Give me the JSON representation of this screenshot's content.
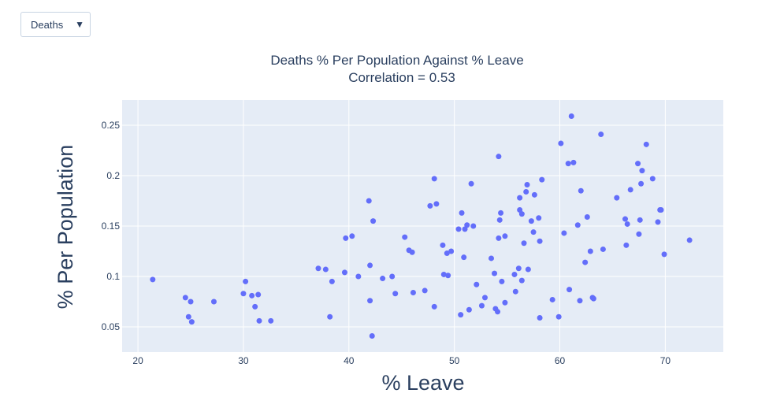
{
  "dropdown": {
    "selected": "Deaths"
  },
  "chart_data": {
    "type": "scatter",
    "title": "Deaths % Per Population Against % Leave",
    "subtitle": "Correlation = 0.53",
    "xlabel": "% Leave",
    "ylabel": "% Per Population",
    "xlim": [
      18.5,
      75.5
    ],
    "ylim": [
      0.025,
      0.275
    ],
    "xticks": [
      20,
      30,
      40,
      50,
      60,
      70
    ],
    "yticks": [
      0.05,
      0.1,
      0.15,
      0.2,
      0.25
    ],
    "ytick_labels": [
      "0.05",
      "0.1",
      "0.15",
      "0.2",
      "0.25"
    ],
    "grid": true,
    "marker_color": "#636efa",
    "plot_bg": "#e5ecf6",
    "points": [
      [
        21.4,
        0.097
      ],
      [
        24.5,
        0.079
      ],
      [
        24.8,
        0.06
      ],
      [
        25.0,
        0.075
      ],
      [
        25.1,
        0.055
      ],
      [
        27.2,
        0.075
      ],
      [
        30.0,
        0.083
      ],
      [
        30.2,
        0.095
      ],
      [
        30.8,
        0.081
      ],
      [
        31.1,
        0.07
      ],
      [
        31.4,
        0.082
      ],
      [
        31.5,
        0.056
      ],
      [
        32.6,
        0.056
      ],
      [
        37.1,
        0.108
      ],
      [
        37.8,
        0.107
      ],
      [
        38.2,
        0.06
      ],
      [
        38.4,
        0.095
      ],
      [
        39.6,
        0.104
      ],
      [
        39.7,
        0.138
      ],
      [
        40.3,
        0.14
      ],
      [
        40.9,
        0.1
      ],
      [
        41.9,
        0.175
      ],
      [
        42.0,
        0.111
      ],
      [
        42.0,
        0.076
      ],
      [
        42.2,
        0.041
      ],
      [
        42.3,
        0.155
      ],
      [
        43.2,
        0.098
      ],
      [
        44.1,
        0.1
      ],
      [
        44.4,
        0.083
      ],
      [
        45.3,
        0.139
      ],
      [
        45.7,
        0.126
      ],
      [
        46.0,
        0.124
      ],
      [
        46.1,
        0.084
      ],
      [
        47.2,
        0.086
      ],
      [
        47.7,
        0.17
      ],
      [
        48.1,
        0.197
      ],
      [
        48.1,
        0.07
      ],
      [
        48.3,
        0.172
      ],
      [
        48.9,
        0.131
      ],
      [
        49.0,
        0.102
      ],
      [
        49.3,
        0.123
      ],
      [
        49.4,
        0.101
      ],
      [
        49.7,
        0.125
      ],
      [
        50.4,
        0.147
      ],
      [
        50.6,
        0.062
      ],
      [
        50.7,
        0.163
      ],
      [
        50.9,
        0.119
      ],
      [
        51.0,
        0.147
      ],
      [
        51.2,
        0.151
      ],
      [
        51.4,
        0.067
      ],
      [
        51.6,
        0.192
      ],
      [
        51.8,
        0.15
      ],
      [
        52.1,
        0.092
      ],
      [
        52.6,
        0.071
      ],
      [
        52.9,
        0.079
      ],
      [
        53.5,
        0.118
      ],
      [
        53.8,
        0.103
      ],
      [
        53.9,
        0.068
      ],
      [
        54.1,
        0.065
      ],
      [
        54.2,
        0.138
      ],
      [
        54.2,
        0.219
      ],
      [
        54.3,
        0.156
      ],
      [
        54.4,
        0.163
      ],
      [
        54.5,
        0.095
      ],
      [
        54.8,
        0.14
      ],
      [
        54.8,
        0.074
      ],
      [
        55.7,
        0.102
      ],
      [
        55.8,
        0.085
      ],
      [
        56.1,
        0.108
      ],
      [
        56.2,
        0.166
      ],
      [
        56.2,
        0.178
      ],
      [
        56.4,
        0.162
      ],
      [
        56.4,
        0.096
      ],
      [
        56.6,
        0.133
      ],
      [
        56.8,
        0.184
      ],
      [
        56.9,
        0.191
      ],
      [
        57.0,
        0.107
      ],
      [
        57.3,
        0.155
      ],
      [
        57.5,
        0.144
      ],
      [
        57.6,
        0.181
      ],
      [
        58.0,
        0.158
      ],
      [
        58.1,
        0.135
      ],
      [
        58.1,
        0.059
      ],
      [
        58.3,
        0.196
      ],
      [
        59.3,
        0.077
      ],
      [
        59.9,
        0.06
      ],
      [
        60.1,
        0.232
      ],
      [
        60.4,
        0.143
      ],
      [
        60.8,
        0.212
      ],
      [
        60.9,
        0.087
      ],
      [
        61.1,
        0.259
      ],
      [
        61.3,
        0.213
      ],
      [
        61.7,
        0.151
      ],
      [
        61.9,
        0.076
      ],
      [
        62.0,
        0.185
      ],
      [
        62.4,
        0.114
      ],
      [
        62.6,
        0.159
      ],
      [
        62.9,
        0.125
      ],
      [
        63.1,
        0.079
      ],
      [
        63.2,
        0.078
      ],
      [
        63.9,
        0.241
      ],
      [
        64.1,
        0.127
      ],
      [
        65.4,
        0.178
      ],
      [
        66.2,
        0.157
      ],
      [
        66.3,
        0.131
      ],
      [
        66.4,
        0.152
      ],
      [
        66.7,
        0.186
      ],
      [
        67.4,
        0.212
      ],
      [
        67.5,
        0.142
      ],
      [
        67.6,
        0.156
      ],
      [
        67.7,
        0.192
      ],
      [
        67.8,
        0.205
      ],
      [
        68.2,
        0.231
      ],
      [
        68.8,
        0.197
      ],
      [
        69.3,
        0.154
      ],
      [
        69.5,
        0.166
      ],
      [
        69.6,
        0.166
      ],
      [
        69.9,
        0.122
      ],
      [
        72.3,
        0.136
      ]
    ]
  }
}
